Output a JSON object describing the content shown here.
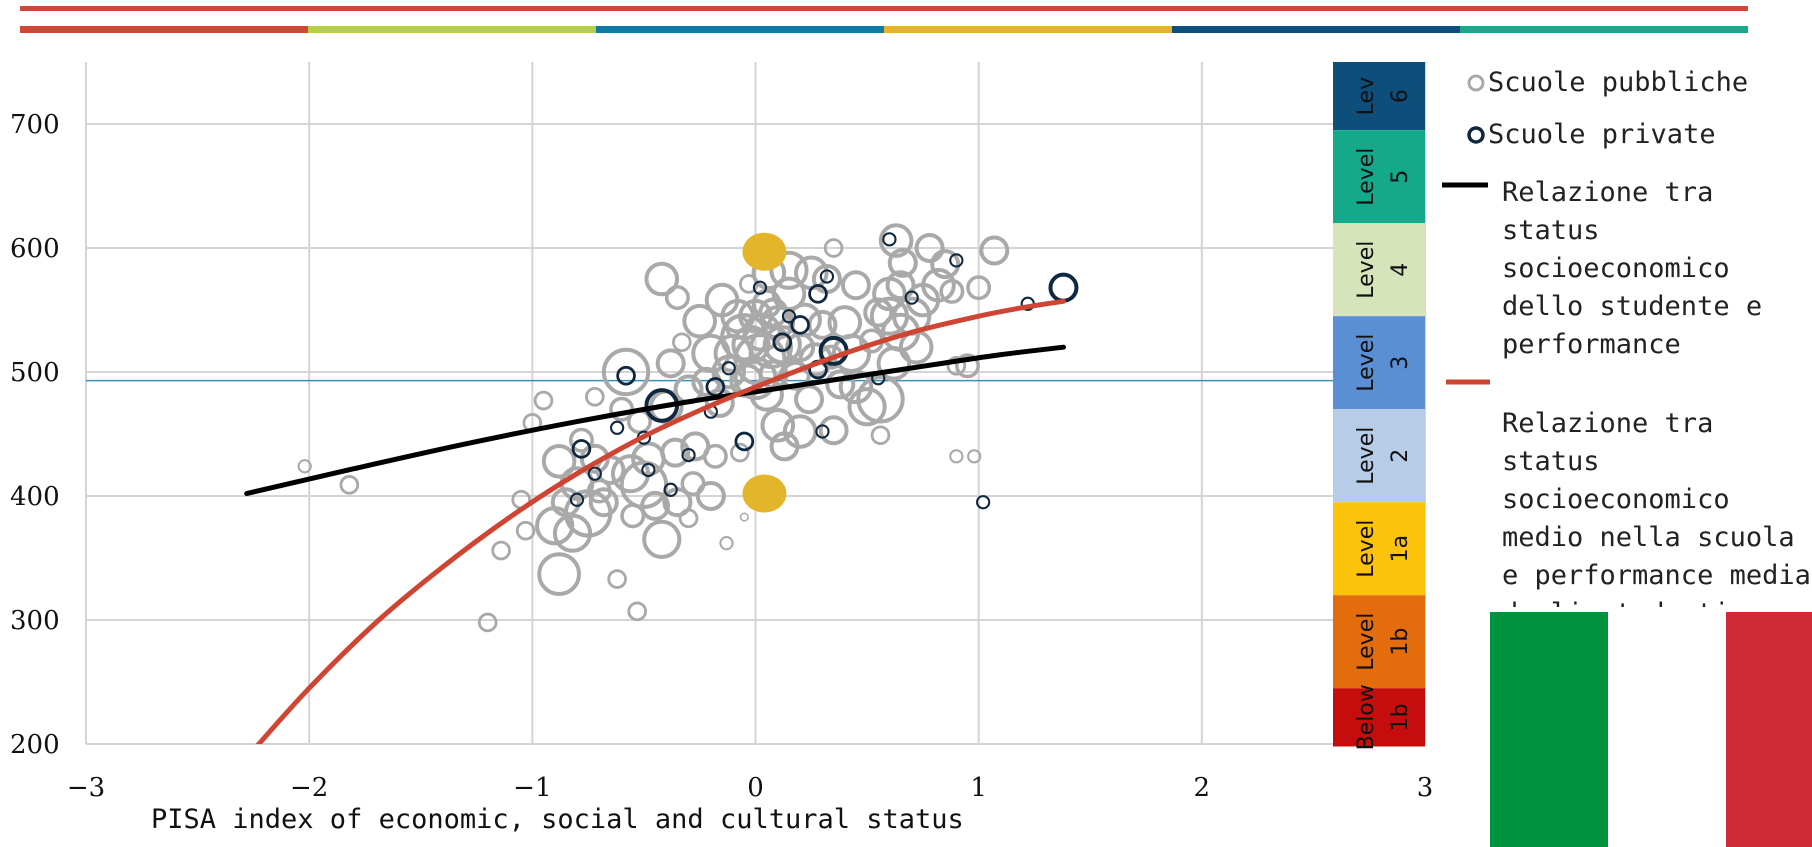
{
  "colors": {
    "header_top": "#d0473a",
    "header_segments": [
      "#d0473a",
      "#b5cf49",
      "#0f7aa6",
      "#e3b42a",
      "#0c4f7d",
      "#17a98a"
    ],
    "grid": "#d4d4d4",
    "ref_line": "#3a8fb3",
    "public_schools": "#a9a9a9",
    "private_schools": "#10283f",
    "student_relation": "#000000",
    "school_relation": "#cf4533",
    "marker": "#e2b52a",
    "flag": [
      "#00923f",
      "#ffffff",
      "#ce2b37"
    ]
  },
  "chart_data": {
    "type": "scatter",
    "xlabel": "PISA index of economic, social and cultural status",
    "ylabel": "",
    "xlim": [
      -3,
      3
    ],
    "ylim": [
      200,
      750
    ],
    "x_ticks": [
      "−3",
      "−2",
      "−1",
      "0",
      "1",
      "2",
      "3"
    ],
    "y_ticks": [
      "200",
      "300",
      "400",
      "500",
      "600",
      "700"
    ],
    "grid": true,
    "reference_line": 493,
    "series": [
      {
        "name": "Scuole pubbliche",
        "style": "open-circle",
        "points": [
          [
            -2.02,
            424,
            2
          ],
          [
            -1.82,
            409,
            3
          ],
          [
            -1.2,
            298,
            3
          ],
          [
            -1.14,
            356,
            3
          ],
          [
            -1.05,
            397,
            3
          ],
          [
            -1.0,
            459,
            3
          ],
          [
            -0.95,
            477,
            3
          ],
          [
            -0.9,
            376,
            7
          ],
          [
            -0.88,
            337,
            8
          ],
          [
            -0.88,
            428,
            6
          ],
          [
            -0.85,
            395,
            5
          ],
          [
            -0.82,
            370,
            7
          ],
          [
            -0.8,
            410,
            6
          ],
          [
            -0.78,
            445,
            4
          ],
          [
            -0.75,
            386,
            9
          ],
          [
            -0.72,
            430,
            5
          ],
          [
            -0.7,
            404,
            4
          ],
          [
            -0.68,
            395,
            5
          ],
          [
            -0.65,
            421,
            5
          ],
          [
            -0.62,
            333,
            3
          ],
          [
            -0.6,
            470,
            4
          ],
          [
            -0.58,
            500,
            9
          ],
          [
            -0.56,
            418,
            7
          ],
          [
            -0.55,
            384,
            4
          ],
          [
            -0.53,
            307,
            3
          ],
          [
            -0.52,
            460,
            4
          ],
          [
            -0.5,
            409,
            9
          ],
          [
            -0.48,
            430,
            6
          ],
          [
            -0.45,
            392,
            5
          ],
          [
            -0.42,
            365,
            7
          ],
          [
            -0.42,
            575,
            6
          ],
          [
            -0.4,
            472,
            6
          ],
          [
            -0.38,
            507,
            5
          ],
          [
            -0.36,
            435,
            5
          ],
          [
            -0.35,
            395,
            5
          ],
          [
            -0.33,
            524,
            3
          ],
          [
            -0.3,
            486,
            5
          ],
          [
            -0.3,
            382,
            3
          ],
          [
            -0.28,
            410,
            4
          ],
          [
            -0.27,
            440,
            5
          ],
          [
            -0.25,
            541,
            6
          ],
          [
            -0.22,
            492,
            5
          ],
          [
            -0.2,
            400,
            5
          ],
          [
            -0.2,
            515,
            7
          ],
          [
            -0.18,
            432,
            4
          ],
          [
            -0.16,
            475,
            5
          ],
          [
            -0.15,
            558,
            6
          ],
          [
            -0.13,
            362,
            2
          ],
          [
            -0.12,
            500,
            6
          ],
          [
            -0.1,
            515,
            7
          ],
          [
            -0.08,
            545,
            6
          ],
          [
            -0.07,
            435,
            3
          ],
          [
            -0.05,
            528,
            9
          ],
          [
            -0.04,
            493,
            6
          ],
          [
            -0.03,
            571,
            3
          ],
          [
            -0.02,
            522,
            7
          ],
          [
            0.0,
            545,
            6
          ],
          [
            0.0,
            495,
            8
          ],
          [
            0.02,
            510,
            10
          ],
          [
            0.03,
            532,
            7
          ],
          [
            0.05,
            482,
            6
          ],
          [
            0.05,
            555,
            5
          ],
          [
            0.06,
            580,
            6
          ],
          [
            0.07,
            520,
            8
          ],
          [
            0.08,
            498,
            5
          ],
          [
            0.1,
            540,
            6
          ],
          [
            0.1,
            457,
            6
          ],
          [
            0.12,
            522,
            7
          ],
          [
            0.13,
            440,
            5
          ],
          [
            0.15,
            563,
            6
          ],
          [
            0.15,
            582,
            7
          ],
          [
            0.18,
            497,
            5
          ],
          [
            0.2,
            520,
            5
          ],
          [
            0.2,
            452,
            6
          ],
          [
            0.22,
            542,
            6
          ],
          [
            0.24,
            478,
            5
          ],
          [
            0.25,
            580,
            6
          ],
          [
            0.27,
            510,
            6
          ],
          [
            0.3,
            538,
            5
          ],
          [
            0.32,
            575,
            5
          ],
          [
            0.34,
            512,
            4
          ],
          [
            0.35,
            453,
            5
          ],
          [
            0.38,
            490,
            5
          ],
          [
            0.4,
            540,
            6
          ],
          [
            0.43,
            515,
            7
          ],
          [
            0.45,
            570,
            5
          ],
          [
            0.45,
            488,
            6
          ],
          [
            0.5,
            472,
            7
          ],
          [
            0.52,
            525,
            4
          ],
          [
            0.55,
            548,
            5
          ],
          [
            0.56,
            478,
            9
          ],
          [
            0.6,
            545,
            7
          ],
          [
            0.6,
            563,
            6
          ],
          [
            0.62,
            507,
            6
          ],
          [
            0.65,
            532,
            7
          ],
          [
            0.65,
            570,
            5
          ],
          [
            0.66,
            588,
            5
          ],
          [
            0.7,
            545,
            7
          ],
          [
            0.72,
            520,
            6
          ],
          [
            0.75,
            558,
            6
          ],
          [
            0.78,
            600,
            5
          ],
          [
            0.82,
            570,
            6
          ],
          [
            0.85,
            587,
            5
          ],
          [
            0.88,
            565,
            4
          ],
          [
            0.9,
            432,
            2
          ],
          [
            0.9,
            505,
            3
          ],
          [
            0.95,
            505,
            4
          ],
          [
            0.98,
            432,
            2
          ],
          [
            1.0,
            568,
            4
          ],
          [
            1.07,
            598,
            5
          ],
          [
            0.63,
            606,
            6
          ],
          [
            -0.05,
            383,
            1
          ],
          [
            -0.72,
            480,
            3
          ],
          [
            -1.03,
            372,
            3
          ],
          [
            -0.35,
            560,
            4
          ],
          [
            0.35,
            600,
            3
          ],
          [
            0.56,
            449,
            3
          ],
          [
            -0.08,
            536,
            4
          ],
          [
            0.08,
            548,
            5
          ]
        ]
      },
      {
        "name": "Scuole private",
        "style": "open-circle",
        "points": [
          [
            -0.8,
            397,
            2
          ],
          [
            -0.78,
            438,
            3
          ],
          [
            -0.72,
            418,
            2
          ],
          [
            -0.62,
            455,
            2
          ],
          [
            -0.58,
            497,
            3
          ],
          [
            -0.5,
            447,
            2
          ],
          [
            -0.48,
            421,
            2
          ],
          [
            -0.42,
            473,
            6
          ],
          [
            -0.38,
            405,
            2
          ],
          [
            -0.3,
            433,
            2
          ],
          [
            -0.2,
            468,
            2
          ],
          [
            -0.18,
            488,
            3
          ],
          [
            -0.12,
            503,
            2
          ],
          [
            -0.05,
            444,
            3
          ],
          [
            0.02,
            568,
            2
          ],
          [
            0.12,
            524,
            3
          ],
          [
            0.15,
            545,
            2
          ],
          [
            0.2,
            538,
            3
          ],
          [
            0.28,
            502,
            3
          ],
          [
            0.28,
            563,
            3
          ],
          [
            0.3,
            452,
            2
          ],
          [
            0.32,
            577,
            2
          ],
          [
            0.35,
            517,
            5
          ],
          [
            0.55,
            495,
            2
          ],
          [
            0.6,
            607,
            2
          ],
          [
            0.7,
            560,
            2
          ],
          [
            0.9,
            590,
            2
          ],
          [
            1.02,
            395,
            2
          ],
          [
            1.22,
            555,
            2
          ],
          [
            1.38,
            568,
            5
          ]
        ]
      },
      {
        "name": "Relazione tra status socioeconomico dello studente e performance",
        "style": "line",
        "points": [
          [
            -2.28,
            402
          ],
          [
            -1.8,
            422
          ],
          [
            -1.3,
            442
          ],
          [
            -0.8,
            460
          ],
          [
            -0.3,
            476
          ],
          [
            0.0,
            484
          ],
          [
            0.4,
            495
          ],
          [
            0.8,
            506
          ],
          [
            1.1,
            514
          ],
          [
            1.38,
            520
          ]
        ]
      },
      {
        "name": "Relazione tra status socioeconomico medio nella scuola e performance media degli studenti",
        "style": "curve",
        "points": [
          [
            -2.25,
            195
          ],
          [
            -2.0,
            245
          ],
          [
            -1.7,
            298
          ],
          [
            -1.4,
            343
          ],
          [
            -1.1,
            383
          ],
          [
            -0.8,
            418
          ],
          [
            -0.5,
            448
          ],
          [
            -0.2,
            473
          ],
          [
            0.1,
            495
          ],
          [
            0.4,
            515
          ],
          [
            0.7,
            532
          ],
          [
            1.0,
            545
          ],
          [
            1.2,
            552
          ],
          [
            1.38,
            557
          ]
        ]
      }
    ],
    "highlight_markers": [
      {
        "x": 0.04,
        "y": 597
      },
      {
        "x": 0.04,
        "y": 402
      }
    ]
  },
  "levels": [
    {
      "label": "Lev",
      "sub": "6",
      "color": "#0e4e7a",
      "from": 695,
      "to": 750
    },
    {
      "label": "Level",
      "sub": "5",
      "color": "#13a98a",
      "from": 620,
      "to": 695
    },
    {
      "label": "Level",
      "sub": "4",
      "color": "#d6e4bb",
      "from": 545,
      "to": 620
    },
    {
      "label": "Level",
      "sub": "3",
      "color": "#5b8fd4",
      "from": 470,
      "to": 545
    },
    {
      "label": "Level",
      "sub": "2",
      "color": "#b7cce6",
      "from": 395,
      "to": 470
    },
    {
      "label": "Level",
      "sub": "1a",
      "color": "#fdc20a",
      "from": 320,
      "to": 395
    },
    {
      "label": "Level",
      "sub": "1b",
      "color": "#e36c0d",
      "from": 245,
      "to": 320
    },
    {
      "label": "Below",
      "sub": "1b",
      "color": "#c50d0d",
      "from": 198,
      "to": 245
    }
  ],
  "legend": {
    "public": "Scuole pubbliche",
    "private": "Scuole private",
    "student_relation": "Relazione tra\nstatus\nsocioeconomico\ndello studente e\nperformance",
    "school_relation": "Relazione tra\nstatus\nsocioeconomico\nmedio nella scuola\ne performance media\ndegli studenti"
  }
}
